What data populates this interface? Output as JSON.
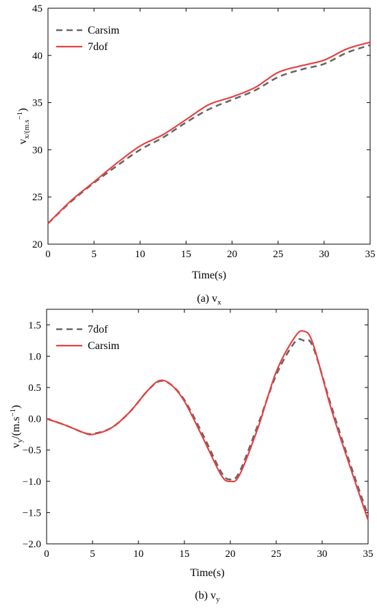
{
  "chart_data": [
    {
      "type": "line",
      "xlabel": "Time(s)",
      "ylabel": {
        "base": "v",
        "sub": "x/(m.s",
        "sup": "−1",
        "close": ")"
      },
      "caption": {
        "prefix": "(a) v",
        "sub": "x"
      },
      "xlim": [
        0,
        35
      ],
      "ylim": [
        20,
        45
      ],
      "xticks": [
        0,
        5,
        10,
        15,
        20,
        25,
        30,
        35
      ],
      "yticks": [
        20,
        25,
        30,
        35,
        40,
        45
      ],
      "legend_position": "top-left",
      "series": [
        {
          "name": "Carsim",
          "style": "dashed",
          "color": "#666666",
          "x": [
            0,
            2.5,
            5,
            7.5,
            10,
            12.5,
            15,
            17.5,
            20,
            22.5,
            25,
            27.5,
            30,
            32.5,
            35
          ],
          "y": [
            22.2,
            24.5,
            26.5,
            28.3,
            30.0,
            31.3,
            32.9,
            34.3,
            35.3,
            36.3,
            37.7,
            38.5,
            39.1,
            40.3,
            41.1
          ]
        },
        {
          "name": "7dof",
          "style": "solid",
          "color": "#e8403f",
          "x": [
            0,
            2.5,
            5,
            7.5,
            10,
            12.5,
            15,
            17.5,
            20,
            22.5,
            25,
            27.5,
            30,
            32.5,
            35
          ],
          "y": [
            22.2,
            24.6,
            26.6,
            28.6,
            30.4,
            31.6,
            33.2,
            34.8,
            35.6,
            36.6,
            38.2,
            38.9,
            39.5,
            40.7,
            41.4
          ]
        }
      ]
    },
    {
      "type": "line",
      "xlabel": "Time(s)",
      "ylabel": {
        "base": "v",
        "sub": "y",
        "mid": "/(m.s",
        "sup": "−1",
        "close": ")"
      },
      "caption": {
        "prefix": "(b) v",
        "sub": "y"
      },
      "xlim": [
        0,
        35
      ],
      "ylim": [
        -2.0,
        1.75
      ],
      "xticks": [
        0,
        5,
        10,
        15,
        20,
        25,
        30,
        35
      ],
      "yticks": [
        -2.0,
        -1.5,
        -1.0,
        -0.5,
        0.0,
        0.5,
        1.0,
        1.5
      ],
      "ytick_labels": [
        "−2.0",
        "−1.5",
        "−1.0",
        "−0.5",
        "0.0",
        "0.5",
        "1.0",
        "1.5"
      ],
      "legend_position": "top-left",
      "series": [
        {
          "name": "7dof",
          "style": "dashed",
          "color": "#666666",
          "x": [
            0,
            2,
            4,
            5,
            7,
            9,
            11,
            12.3,
            13.5,
            15,
            17,
            19,
            20,
            21,
            23,
            25,
            27,
            28,
            29,
            31,
            33,
            35
          ],
          "y": [
            0.0,
            -0.1,
            -0.22,
            -0.24,
            -0.15,
            0.1,
            0.45,
            0.6,
            0.55,
            0.3,
            -0.25,
            -0.85,
            -0.97,
            -0.85,
            -0.1,
            0.7,
            1.22,
            1.25,
            1.15,
            0.2,
            -0.7,
            -1.55
          ]
        },
        {
          "name": "Carsim",
          "style": "solid",
          "color": "#e8403f",
          "x": [
            0,
            2,
            4,
            5,
            7,
            9,
            11,
            12.3,
            13.5,
            15,
            17,
            19,
            20,
            21,
            23,
            25,
            27,
            28,
            29,
            31,
            33,
            35
          ],
          "y": [
            0.0,
            -0.1,
            -0.22,
            -0.25,
            -0.15,
            0.1,
            0.45,
            0.61,
            0.55,
            0.28,
            -0.3,
            -0.9,
            -1.0,
            -0.9,
            -0.15,
            0.75,
            1.3,
            1.4,
            1.2,
            0.15,
            -0.75,
            -1.62
          ]
        }
      ]
    }
  ]
}
